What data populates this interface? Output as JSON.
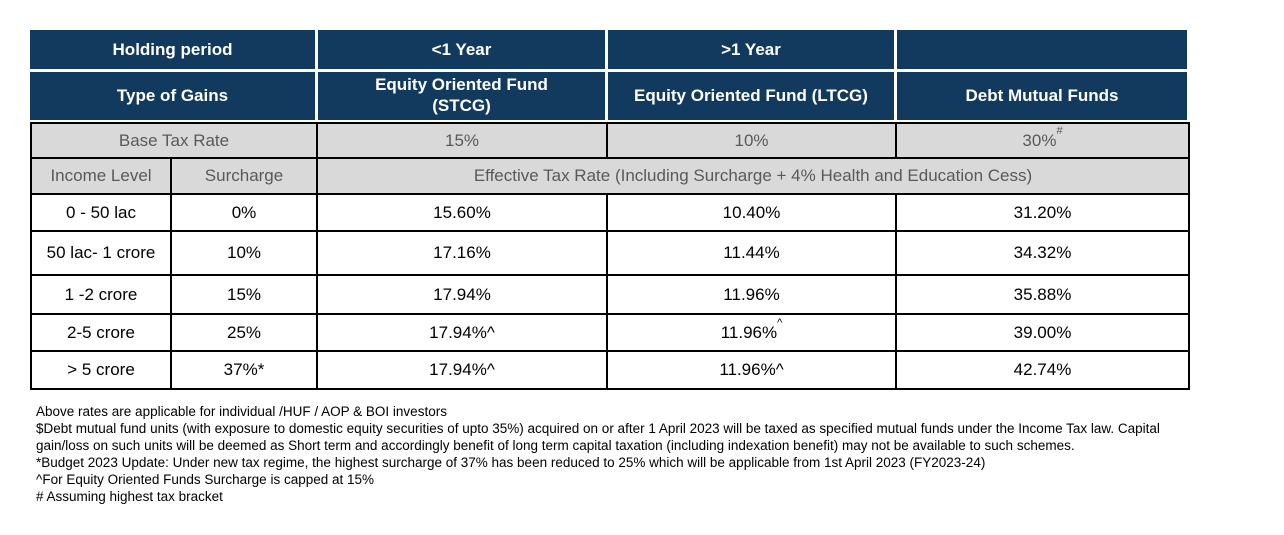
{
  "colors": {
    "header_navy": "#123A5E",
    "highlight_green": "#57BB7C",
    "gray_row_bg": "#D9D9D9",
    "gray_row_text": "#595959",
    "grid_border": "#000000"
  },
  "table": {
    "header1": {
      "holding_period": "Holding period",
      "lt1_year": "<1 Year",
      "gt1_year": ">1 Year",
      "blank": ""
    },
    "header2": {
      "type_of_gains": "Type of Gains",
      "stcg": "Equity Oriented Fund\n(STCG)",
      "ltcg": "Equity Oriented Fund (LTCG)",
      "debt": "Debt Mutual Funds"
    },
    "base_tax": {
      "label": "Base Tax Rate",
      "stcg": "15%",
      "ltcg": "10%",
      "debt": "30%",
      "debt_sup": "#"
    },
    "subheader": {
      "income_level": "Income Level",
      "surcharge": "Surcharge",
      "effective": "Effective Tax Rate (Including Surcharge + 4% Health and Education Cess)"
    },
    "rows": [
      {
        "income": "0 - 50 lac",
        "surcharge": "0%",
        "stcg": "15.60%",
        "stcg_sup": "",
        "ltcg": "10.40%",
        "ltcg_sup": "",
        "debt": "31.20%"
      },
      {
        "income": "50 lac- 1 crore",
        "surcharge": "10%",
        "stcg": "17.16%",
        "stcg_sup": "",
        "ltcg": "11.44%",
        "ltcg_sup": "",
        "debt": "34.32%"
      },
      {
        "income": "1 -2 crore",
        "surcharge": "15%",
        "stcg": "17.94%",
        "stcg_sup": "",
        "ltcg": "11.96%",
        "ltcg_sup": "",
        "debt": "35.88%"
      },
      {
        "income": "2-5 crore",
        "surcharge": "25%",
        "stcg": "17.94%^",
        "stcg_sup": "",
        "ltcg": "11.96%",
        "ltcg_sup": "^",
        "debt": "39.00%"
      },
      {
        "income": "> 5 crore",
        "surcharge": "37%*",
        "stcg": "17.94%^",
        "stcg_sup": "",
        "ltcg": "11.96%^",
        "ltcg_sup": "",
        "debt": "42.74%"
      }
    ]
  },
  "footnotes": [
    "Above rates are applicable for individual /HUF / AOP & BOI investors",
    "$Debt mutual fund units (with exposure to domestic equity securities of upto 35%) acquired on or after 1 April 2023 will be taxed as specified mutual funds under the Income Tax law. Capital gain/loss on such units will be deemed as Short term and accordingly benefit of long term capital taxation (including indexation benefit) may not be available to such schemes.",
    "*Budget 2023 Update: Under new tax regime, the highest surcharge of 37% has been reduced to 25% which will be applicable from 1st April 2023 (FY2023-24)",
    "^For Equity Oriented Funds Surcharge is capped at 15%",
    "# Assuming highest tax bracket"
  ]
}
